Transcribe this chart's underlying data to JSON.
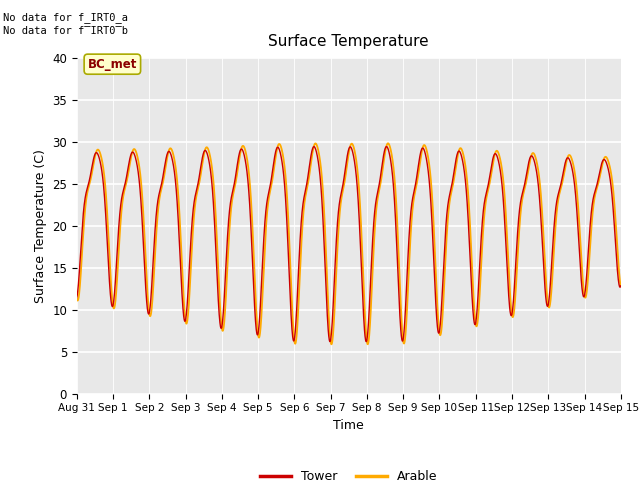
{
  "title": "Surface Temperature",
  "xlabel": "Time",
  "ylabel": "Surface Temperature (C)",
  "ylim": [
    0,
    40
  ],
  "yticks": [
    0,
    5,
    10,
    15,
    20,
    25,
    30,
    35,
    40
  ],
  "text_no_data_1": "No data for f_IRT0_a",
  "text_no_data_2": "No data for f̅IRT0̅b",
  "bc_met_label": "BC_met",
  "legend_tower": "Tower",
  "legend_arable": "Arable",
  "tower_color": "#cc0000",
  "arable_color": "#ffaa00",
  "background_color": "#e8e8e8",
  "tower_lw": 1.0,
  "arable_lw": 1.3,
  "num_points": 3000
}
